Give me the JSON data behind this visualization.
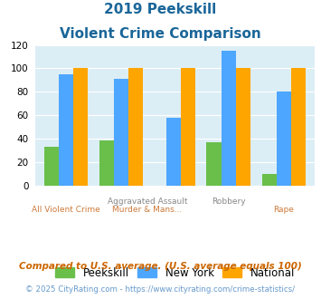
{
  "title_line1": "2019 Peekskill",
  "title_line2": "Violent Crime Comparison",
  "peekskill": [
    33,
    38,
    0,
    37,
    10
  ],
  "newyork": [
    95,
    91,
    58,
    115,
    80
  ],
  "national": [
    100,
    100,
    100,
    100,
    100
  ],
  "group_labels_top": [
    "",
    "Aggravated Assault",
    "Assault",
    "Robbery",
    ""
  ],
  "group_labels_bot": [
    "All Violent Crime",
    "Murder & Mans...",
    "",
    "",
    "Rape"
  ],
  "peekskill_color": "#6abf4b",
  "newyork_color": "#4da6ff",
  "national_color": "#ffa500",
  "bg_color": "#dceef5",
  "ylim": [
    0,
    120
  ],
  "yticks": [
    0,
    20,
    40,
    60,
    80,
    100,
    120
  ],
  "footnote1": "Compared to U.S. average. (U.S. average equals 100)",
  "footnote2": "© 2025 CityRating.com - https://www.cityrating.com/crime-statistics/",
  "title_color": "#1a6699",
  "top_label_color": "#888888",
  "bot_label_color": "#cc7a3a",
  "footnote1_color": "#cc6600",
  "footnote2_color": "#6699cc"
}
